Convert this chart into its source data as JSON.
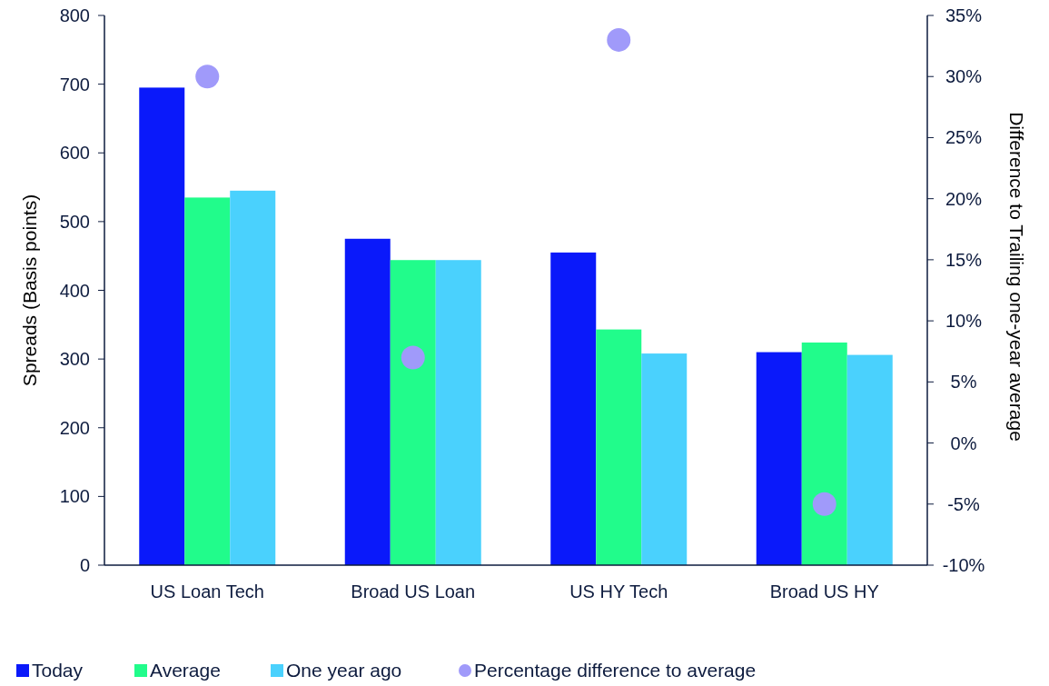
{
  "chart_data": {
    "type": "bar",
    "categories": [
      "US Loan Tech",
      "Broad US Loan",
      "US HY Tech",
      "Broad US HY"
    ],
    "ylabel": "Spreads (Basis points)",
    "y2label": "Difference to Trailing one-year average",
    "ylim": [
      0,
      800
    ],
    "yticks": [
      0,
      100,
      200,
      300,
      400,
      500,
      600,
      700,
      800
    ],
    "y2lim": [
      -10,
      35
    ],
    "y2ticks": [
      {
        "value": -10,
        "label": "-10%"
      },
      {
        "value": -5,
        "label": "-5%"
      },
      {
        "value": 0,
        "label": "0%"
      },
      {
        "value": 5,
        "label": "5%"
      },
      {
        "value": 10,
        "label": "10%"
      },
      {
        "value": 15,
        "label": "15%"
      },
      {
        "value": 20,
        "label": "20%"
      },
      {
        "value": 25,
        "label": "25%"
      },
      {
        "value": 30,
        "label": "30%"
      },
      {
        "value": 35,
        "label": "35%"
      }
    ],
    "series": [
      {
        "name": "Today",
        "color": "#0a19fa",
        "values": [
          695,
          475,
          455,
          310
        ]
      },
      {
        "name": "Average",
        "color": "#21fc8b",
        "values": [
          535,
          444,
          343,
          324
        ]
      },
      {
        "name": "One year ago",
        "color": "#4ad1fd",
        "values": [
          545,
          444,
          308,
          306
        ]
      },
      {
        "name": "Percentage difference to average",
        "type": "scatter",
        "axis": "y2",
        "marker": "circle",
        "color": "#a09afa",
        "x": [
          "US Loan Tech",
          "Broad US Loan",
          "US HY Tech",
          "Broad US HY"
        ],
        "values": [
          30,
          7,
          33,
          -5
        ]
      }
    ],
    "legend": "bottom",
    "grid": false
  }
}
